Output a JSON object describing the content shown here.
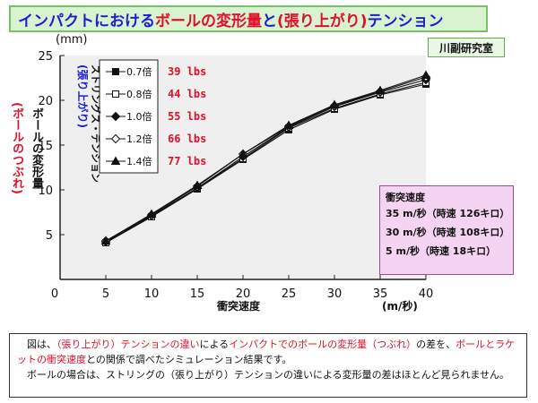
{
  "title": {
    "part1": "インパクト",
    "part2": "における",
    "part3": "ボールの変形量",
    "part4": "と",
    "part5": "(張り上がり)",
    "part6": "テンション"
  },
  "lab": "川副研究室",
  "axis": {
    "y_unit": "(mm)",
    "y_label": "ボールの変形量",
    "y_sublabel": "(ボールのつぶれ)",
    "x_label": "衝突速度",
    "x_unit": "(m/秒)"
  },
  "legend": {
    "title_main": "ストリングス・テンション",
    "title_sub": "(張り上がり)",
    "items": [
      {
        "label": "0.7倍",
        "lbs": "39 lbs",
        "marker": "filled-square"
      },
      {
        "label": "0.8倍",
        "lbs": "44 lbs",
        "marker": "open-square"
      },
      {
        "label": "1.0倍",
        "lbs": "55 lbs",
        "marker": "filled-diamond"
      },
      {
        "label": "1.2倍",
        "lbs": "66 lbs",
        "marker": "open-diamond"
      },
      {
        "label": "1.4倍",
        "lbs": "77 lbs",
        "marker": "filled-triangle"
      }
    ]
  },
  "info": {
    "title": "衝突速度",
    "lines": [
      "35 m/秒（時速 126キロ）",
      "30 m/秒（時速 108キロ）",
      "5 m/秒（時速 18キロ）"
    ]
  },
  "caption": {
    "p1_a": "図は、",
    "p1_b": "（張り上がり）テンションの違い",
    "p1_c": "による",
    "p1_d": "インパクトでのボールの変形量（つぶれ）",
    "p1_e": "の差を、",
    "p1_f": "ボールとラケットの衝突速度",
    "p1_g": "との関係で調べたシミュレーション結果です。",
    "p2": "ボールの場合は、ストリングの（張り上がり）テンションの違いによる変形量の差はほとんど見られません。"
  },
  "colors": {
    "title_blue": "#1a1fd0",
    "title_red": "#e0102a",
    "title_bg": "#d9f2d0",
    "plot_bg": "#efefef",
    "info_bg": "#f5d3f2"
  },
  "chart_data": {
    "type": "line",
    "x": [
      5,
      10,
      15,
      20,
      25,
      30,
      35,
      40
    ],
    "xlim": [
      0,
      40
    ],
    "ylim": [
      0,
      25
    ],
    "xticks": [
      0,
      5,
      10,
      15,
      20,
      25,
      30,
      35,
      40
    ],
    "yticks": [
      5,
      10,
      15,
      20,
      25
    ],
    "grid": false,
    "legend_position": "top-left",
    "series": [
      {
        "name": "0.7倍",
        "marker": "filled-square",
        "values": [
          4.1,
          7.0,
          10.1,
          13.4,
          16.7,
          19.0,
          20.6,
          21.8
        ]
      },
      {
        "name": "0.8倍",
        "marker": "open-square",
        "values": [
          4.1,
          7.0,
          10.2,
          13.5,
          16.9,
          19.1,
          20.7,
          22.0
        ]
      },
      {
        "name": "1.0倍",
        "marker": "filled-diamond",
        "values": [
          4.2,
          7.1,
          10.2,
          13.7,
          17.0,
          19.3,
          20.9,
          22.3
        ]
      },
      {
        "name": "1.2倍",
        "marker": "open-diamond",
        "values": [
          4.3,
          7.2,
          10.4,
          14.0,
          17.1,
          19.4,
          21.0,
          22.6
        ]
      },
      {
        "name": "1.4倍",
        "marker": "filled-triangle",
        "values": [
          4.3,
          7.3,
          10.5,
          14.0,
          17.2,
          19.5,
          21.1,
          22.8
        ]
      }
    ]
  }
}
